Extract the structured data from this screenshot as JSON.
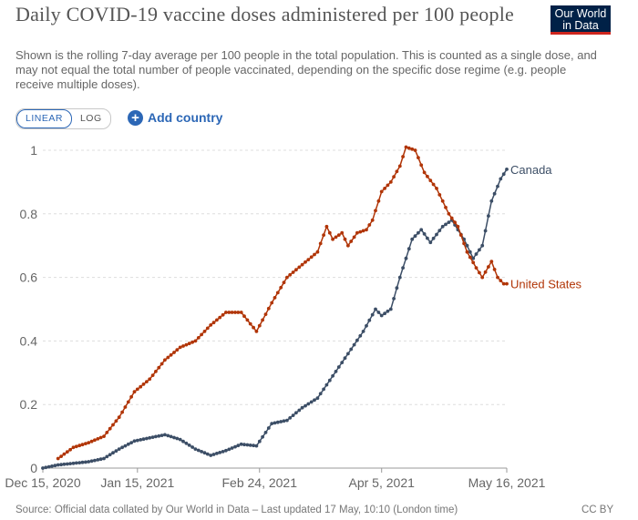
{
  "header": {
    "title": "Daily COVID-19 vaccine doses administered per 100 people",
    "subtitle": "Shown is the rolling 7-day average per 100 people in the total population. This is counted as a single dose, and may not equal the total number of people vaccinated, depending on the specific dose regime (e.g. people receive multiple doses).",
    "logo_line1": "Our World",
    "logo_line2": "in Data"
  },
  "controls": {
    "linear_label": "LINEAR",
    "log_label": "LOG",
    "active_scale": "linear",
    "add_country_label": "Add country",
    "add_icon": "+"
  },
  "footer": {
    "source": "Source: Official data collated by Our World in Data – Last updated 17 May, 10:10 (London time)",
    "license": "CC BY"
  },
  "colors": {
    "canada": "#3c4e66",
    "united_states": "#b13507",
    "axis_text": "#666666",
    "grid": "#dddddd",
    "accent": "#2c67b6"
  },
  "chart_data": {
    "type": "line",
    "title": "Daily COVID-19 vaccine doses administered per 100 people",
    "xlabel": "",
    "ylabel": "",
    "x_ticks": [
      "Dec 15, 2020",
      "Jan 15, 2021",
      "Feb 24, 2021",
      "Apr 5, 2021",
      "May 16, 2021"
    ],
    "y_ticks": [
      "0",
      "0.2",
      "0.4",
      "0.6",
      "0.8",
      "1"
    ],
    "xlim": [
      "2020-12-15",
      "2021-05-16"
    ],
    "ylim": [
      0,
      1.0
    ],
    "grid": true,
    "legend": "line-end labels",
    "series": [
      {
        "name": "Canada",
        "color": "#3c4e66",
        "points": [
          [
            "2020-12-15",
            0.0
          ],
          [
            "2020-12-20",
            0.01
          ],
          [
            "2020-12-25",
            0.015
          ],
          [
            "2020-12-30",
            0.02
          ],
          [
            "2021-01-04",
            0.03
          ],
          [
            "2021-01-09",
            0.06
          ],
          [
            "2021-01-14",
            0.085
          ],
          [
            "2021-01-19",
            0.095
          ],
          [
            "2021-01-24",
            0.105
          ],
          [
            "2021-01-29",
            0.09
          ],
          [
            "2021-02-03",
            0.06
          ],
          [
            "2021-02-08",
            0.04
          ],
          [
            "2021-02-13",
            0.055
          ],
          [
            "2021-02-18",
            0.075
          ],
          [
            "2021-02-23",
            0.07
          ],
          [
            "2021-02-28",
            0.14
          ],
          [
            "2021-03-05",
            0.15
          ],
          [
            "2021-03-10",
            0.19
          ],
          [
            "2021-03-15",
            0.22
          ],
          [
            "2021-03-20",
            0.29
          ],
          [
            "2021-03-25",
            0.36
          ],
          [
            "2021-03-30",
            0.43
          ],
          [
            "2021-04-03",
            0.5
          ],
          [
            "2021-04-05",
            0.48
          ],
          [
            "2021-04-08",
            0.5
          ],
          [
            "2021-04-11",
            0.6
          ],
          [
            "2021-04-15",
            0.72
          ],
          [
            "2021-04-18",
            0.75
          ],
          [
            "2021-04-21",
            0.71
          ],
          [
            "2021-04-25",
            0.76
          ],
          [
            "2021-04-28",
            0.78
          ],
          [
            "2021-05-02",
            0.72
          ],
          [
            "2021-05-05",
            0.66
          ],
          [
            "2021-05-08",
            0.7
          ],
          [
            "2021-05-11",
            0.84
          ],
          [
            "2021-05-14",
            0.91
          ],
          [
            "2021-05-16",
            0.94
          ]
        ]
      },
      {
        "name": "United States",
        "color": "#b13507",
        "points": [
          [
            "2020-12-20",
            0.03
          ],
          [
            "2020-12-25",
            0.065
          ],
          [
            "2020-12-30",
            0.08
          ],
          [
            "2021-01-04",
            0.1
          ],
          [
            "2021-01-09",
            0.16
          ],
          [
            "2021-01-14",
            0.24
          ],
          [
            "2021-01-19",
            0.28
          ],
          [
            "2021-01-24",
            0.34
          ],
          [
            "2021-01-29",
            0.38
          ],
          [
            "2021-02-03",
            0.4
          ],
          [
            "2021-02-08",
            0.45
          ],
          [
            "2021-02-13",
            0.49
          ],
          [
            "2021-02-18",
            0.49
          ],
          [
            "2021-02-23",
            0.43
          ],
          [
            "2021-02-28",
            0.52
          ],
          [
            "2021-03-05",
            0.6
          ],
          [
            "2021-03-10",
            0.64
          ],
          [
            "2021-03-15",
            0.68
          ],
          [
            "2021-03-18",
            0.76
          ],
          [
            "2021-03-20",
            0.72
          ],
          [
            "2021-03-23",
            0.74
          ],
          [
            "2021-03-25",
            0.7
          ],
          [
            "2021-03-28",
            0.74
          ],
          [
            "2021-03-31",
            0.75
          ],
          [
            "2021-04-02",
            0.78
          ],
          [
            "2021-04-05",
            0.87
          ],
          [
            "2021-04-08",
            0.9
          ],
          [
            "2021-04-11",
            0.95
          ],
          [
            "2021-04-13",
            1.01
          ],
          [
            "2021-04-16",
            1.0
          ],
          [
            "2021-04-19",
            0.93
          ],
          [
            "2021-04-23",
            0.88
          ],
          [
            "2021-04-27",
            0.8
          ],
          [
            "2021-04-30",
            0.76
          ],
          [
            "2021-05-03",
            0.68
          ],
          [
            "2021-05-06",
            0.63
          ],
          [
            "2021-05-08",
            0.6
          ],
          [
            "2021-05-11",
            0.65
          ],
          [
            "2021-05-13",
            0.6
          ],
          [
            "2021-05-15",
            0.58
          ],
          [
            "2021-05-16",
            0.58
          ]
        ]
      }
    ]
  }
}
